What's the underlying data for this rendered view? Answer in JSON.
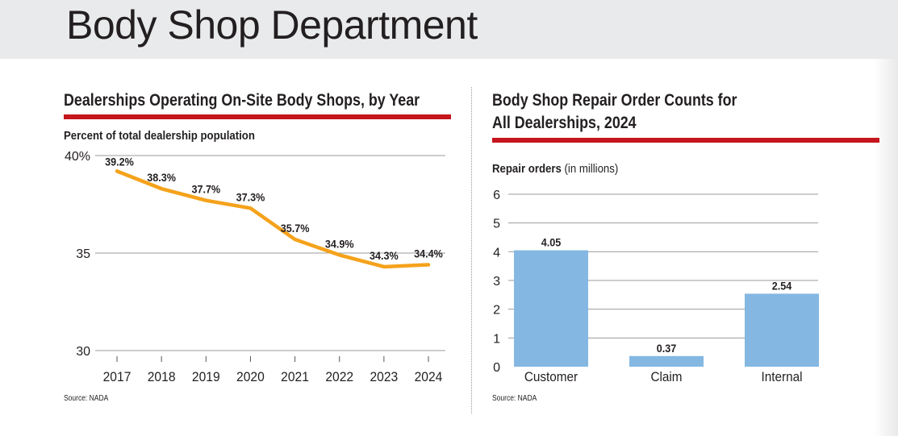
{
  "page": {
    "title": "Body Shop Department"
  },
  "colors": {
    "accent_rule": "#c4161c",
    "line_series": "#f5a21b",
    "bar_fill": "#84b8e2",
    "gridline": "#9b9b9b",
    "header_band": "#e9eaeb",
    "text": "#231f20"
  },
  "left_panel": {
    "title": "Dealerships Operating On-Site Body Shops, by Year",
    "subtitle": "Percent of total dealership population",
    "source": "Source: NADA"
  },
  "right_panel": {
    "title_line1": "Body Shop Repair Order Counts for",
    "title_line2": "All Dealerships, 2024",
    "axis_label_bold": "Repair orders",
    "axis_label_normal": " (in millions)",
    "source": "Source: NADA"
  },
  "chart_data": [
    {
      "type": "line",
      "title": "Dealerships Operating On-Site Body Shops, by Year",
      "subtitle": "Percent of total dealership population",
      "x": [
        "2017",
        "2018",
        "2019",
        "2020",
        "2021",
        "2022",
        "2023",
        "2024"
      ],
      "series": [
        {
          "values": [
            39.2,
            38.3,
            37.7,
            37.3,
            35.7,
            34.9,
            34.3,
            34.4
          ],
          "labels": [
            "39.2%",
            "38.3%",
            "37.7%",
            "37.3%",
            "35.7%",
            "34.9%",
            "34.3%",
            "34.4%"
          ]
        }
      ],
      "ylim": [
        30,
        40
      ],
      "yticks": [
        30,
        35,
        40
      ],
      "ytick_labels": [
        "30",
        "35",
        "40%"
      ],
      "grid": true,
      "legend": "none"
    },
    {
      "type": "bar",
      "title": "Body Shop Repair Order Counts for All Dealerships, 2024",
      "categories": [
        "Customer",
        "Claim",
        "Internal"
      ],
      "values": [
        4.05,
        0.37,
        2.54
      ],
      "value_labels": [
        "4.05",
        "0.37",
        "2.54"
      ],
      "ylabel": "Repair orders (in millions)",
      "ylim": [
        0,
        6
      ],
      "yticks": [
        0,
        1,
        2,
        3,
        4,
        5,
        6
      ],
      "ytick_labels": [
        "0",
        "1",
        "2",
        "3",
        "4",
        "5",
        "6"
      ],
      "grid": true,
      "legend": "none"
    }
  ]
}
